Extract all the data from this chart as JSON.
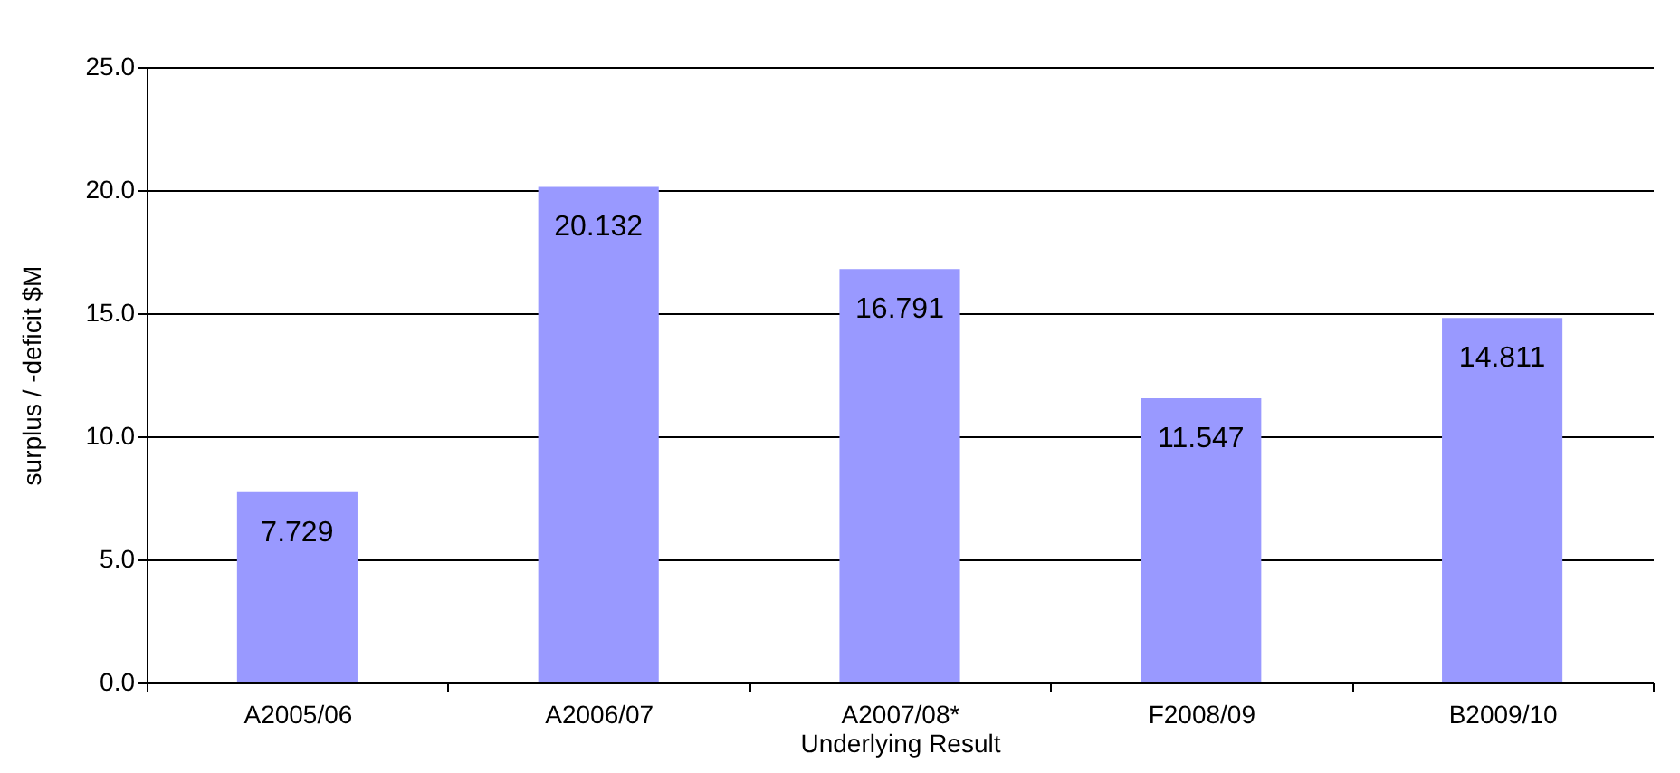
{
  "chart_data": {
    "type": "bar",
    "xlabel": "Underlying Result",
    "ylabel": "surplus / -deficit $M",
    "categories": [
      "A2005/06",
      "A2006/07",
      "A2007/08*",
      "F2008/09",
      "B2009/10"
    ],
    "values": [
      7.729,
      20.132,
      16.791,
      11.547,
      14.811
    ],
    "color": "#9999ff",
    "ylim": [
      0,
      25
    ],
    "yticks": [
      {
        "value": 0,
        "label": "0.0"
      },
      {
        "value": 5,
        "label": "5.0"
      },
      {
        "value": 10,
        "label": "10.0"
      },
      {
        "value": 15,
        "label": "15.0"
      },
      {
        "value": 20,
        "label": "20.0"
      },
      {
        "value": 25,
        "label": "25.0"
      }
    ],
    "grid": "y",
    "data_labels": true
  }
}
